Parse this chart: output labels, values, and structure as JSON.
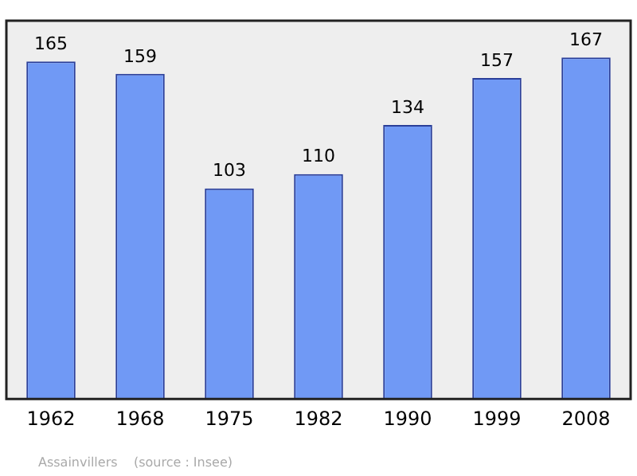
{
  "chart_data": {
    "type": "bar",
    "categories": [
      "1962",
      "1968",
      "1975",
      "1982",
      "1990",
      "1999",
      "2008"
    ],
    "values": [
      165,
      159,
      103,
      110,
      134,
      157,
      167
    ],
    "color": "#7099f5",
    "ylim": [
      0,
      185
    ],
    "tick_labels": "x",
    "grid": false,
    "legend": false,
    "data_labels": true,
    "annotations": [
      "Assainvillers    (source : Insee)"
    ]
  }
}
